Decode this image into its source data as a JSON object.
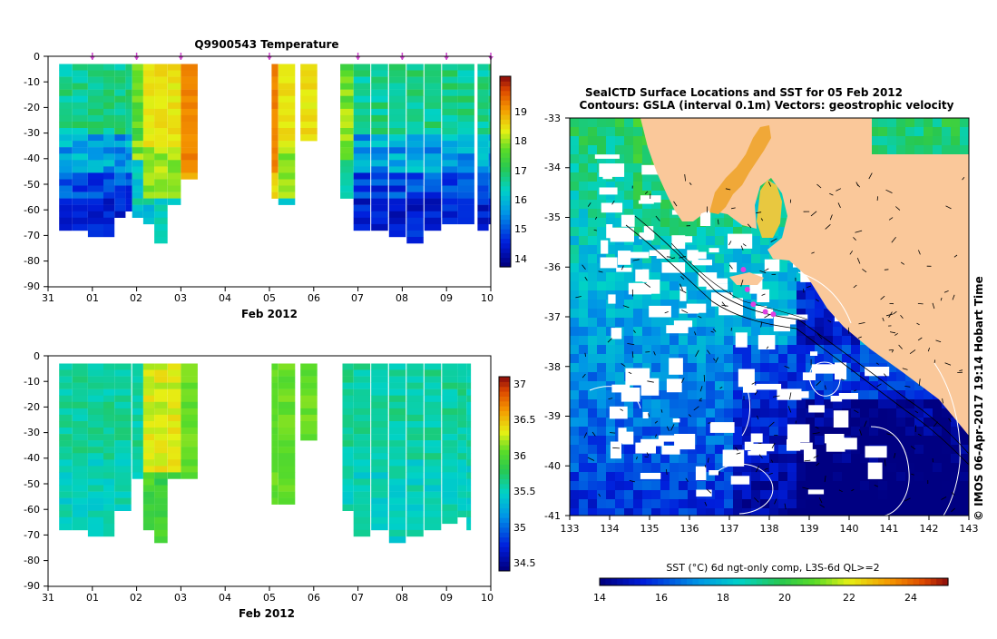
{
  "chart_data": [
    {
      "type": "heatmap",
      "title": "Q9900543  Temperature",
      "xlabel": "Feb 2012",
      "ylabel": "",
      "x_ticks": [
        "31",
        "01",
        "02",
        "03",
        "04",
        "05",
        "06",
        "07",
        "08",
        "09",
        "10"
      ],
      "x_range_days": [
        0,
        10
      ],
      "ylim": [
        -90,
        0
      ],
      "y_ticks": [
        "0",
        "-10",
        "-20",
        "-30",
        "-40",
        "-50",
        "-60",
        "-70",
        "-80",
        "-90"
      ],
      "colorbar": {
        "min": 13.5,
        "max": 20,
        "ticks": [
          "14",
          "15",
          "16",
          "17",
          "18",
          "19"
        ]
      },
      "profile_markers_days": [
        1.0,
        2.0,
        3.0,
        5.0,
        7.0,
        8.0,
        9.0,
        10.0
      ],
      "profiles": [
        {
          "t": 0.25,
          "depth": 67,
          "profile": "cold_mix"
        },
        {
          "t": 0.55,
          "depth": 67,
          "profile": "cold_mix"
        },
        {
          "t": 0.9,
          "depth": 69,
          "profile": "cold_mix"
        },
        {
          "t": 1.25,
          "depth": 69,
          "profile": "cold_mix"
        },
        {
          "t": 1.5,
          "depth": 61,
          "profile": "cold_mix"
        },
        {
          "t": 1.75,
          "depth": 60,
          "profile": "cold_mix"
        },
        {
          "t": 1.9,
          "depth": 63,
          "profile": "warm_mix"
        },
        {
          "t": 2.15,
          "depth": 65,
          "profile": "warm"
        },
        {
          "t": 2.4,
          "depth": 72,
          "profile": "warm"
        },
        {
          "t": 2.7,
          "depth": 58,
          "profile": "warm"
        },
        {
          "t": 3.0,
          "depth": 47,
          "profile": "hot"
        },
        {
          "t": 5.05,
          "depth": 55,
          "profile": "hot"
        },
        {
          "t": 5.2,
          "depth": 57,
          "profile": "warm"
        },
        {
          "t": 5.7,
          "depth": 31,
          "profile": "warm"
        },
        {
          "t": 6.6,
          "depth": 55,
          "profile": "warm_mix"
        },
        {
          "t": 6.9,
          "depth": 68,
          "profile": "cold_mix"
        },
        {
          "t": 7.3,
          "depth": 67,
          "profile": "cold_mix"
        },
        {
          "t": 7.7,
          "depth": 70,
          "profile": "cold_mix"
        },
        {
          "t": 8.1,
          "depth": 71,
          "profile": "cold_mix"
        },
        {
          "t": 8.5,
          "depth": 68,
          "profile": "cold_mix"
        },
        {
          "t": 8.9,
          "depth": 65,
          "profile": "cold_mix"
        },
        {
          "t": 9.25,
          "depth": 64,
          "profile": "cold_mix"
        },
        {
          "t": 9.7,
          "depth": 68,
          "profile": "cold_mix"
        },
        {
          "t": 9.95,
          "depth": 65,
          "profile": "cold_mix"
        }
      ]
    },
    {
      "type": "heatmap",
      "title": "",
      "xlabel": "Feb 2012",
      "ylabel": "",
      "x_ticks": [
        "31",
        "01",
        "02",
        "03",
        "04",
        "05",
        "06",
        "07",
        "08",
        "09",
        "10"
      ],
      "x_range_days": [
        0,
        10
      ],
      "ylim": [
        -90,
        0
      ],
      "y_ticks": [
        "0",
        "-10",
        "-20",
        "-30",
        "-40",
        "-50",
        "-60",
        "-70",
        "-80",
        "-90"
      ],
      "colorbar": {
        "min": 34.3,
        "max": 37.1,
        "ticks": [
          "34.5",
          "35",
          "35.5",
          "36",
          "36.5",
          "37"
        ]
      },
      "profiles": [
        {
          "t": 0.25,
          "depth": 67,
          "profile": "salt_mid"
        },
        {
          "t": 0.55,
          "depth": 66,
          "profile": "salt_mid"
        },
        {
          "t": 0.9,
          "depth": 69,
          "profile": "salt_mid"
        },
        {
          "t": 1.25,
          "depth": 69,
          "profile": "salt_mid"
        },
        {
          "t": 1.5,
          "depth": 60,
          "profile": "salt_mid"
        },
        {
          "t": 1.9,
          "depth": 48,
          "profile": "salt_mid"
        },
        {
          "t": 2.15,
          "depth": 66,
          "profile": "salt_high"
        },
        {
          "t": 2.4,
          "depth": 72,
          "profile": "salt_high"
        },
        {
          "t": 2.7,
          "depth": 47,
          "profile": "salt_high"
        },
        {
          "t": 3.0,
          "depth": 47,
          "profile": "salt_yellow"
        },
        {
          "t": 5.05,
          "depth": 56,
          "profile": "salt_yellow"
        },
        {
          "t": 5.2,
          "depth": 57,
          "profile": "salt_yellow"
        },
        {
          "t": 5.7,
          "depth": 31,
          "profile": "salt_yellow"
        },
        {
          "t": 6.65,
          "depth": 60,
          "profile": "salt_mid"
        },
        {
          "t": 6.9,
          "depth": 69,
          "profile": "salt_mid"
        },
        {
          "t": 7.3,
          "depth": 66,
          "profile": "salt_mid"
        },
        {
          "t": 7.7,
          "depth": 71,
          "profile": "salt_mid"
        },
        {
          "t": 8.1,
          "depth": 69,
          "profile": "salt_mid"
        },
        {
          "t": 8.5,
          "depth": 66,
          "profile": "salt_mid"
        },
        {
          "t": 8.9,
          "depth": 64,
          "profile": "salt_mid"
        },
        {
          "t": 9.25,
          "depth": 63,
          "profile": "salt_mid"
        },
        {
          "t": 9.45,
          "depth": 66,
          "profile": "salt_mid"
        }
      ]
    },
    {
      "type": "heatmap",
      "title": "SealCTD Surface Locations and SST for 05 Feb 2012",
      "subtitle": "Contours: GSLA (interval 0.1m) Vectors: geostrophic velocity",
      "xlabel": "",
      "ylabel": "",
      "xlim": [
        133,
        143
      ],
      "ylim": [
        -41,
        -33
      ],
      "x_ticks": [
        "133",
        "134",
        "135",
        "136",
        "137",
        "138",
        "139",
        "140",
        "141",
        "142",
        "143"
      ],
      "y_ticks": [
        "-33",
        "-34",
        "-35",
        "-36",
        "-37",
        "-38",
        "-39",
        "-40",
        "-41"
      ],
      "colorbar": {
        "label": "SST (°C) 6d ngt-only comp, L3S-6d QL>=2",
        "min": 13.5,
        "max": 25,
        "ticks": [
          "14",
          "16",
          "18",
          "20",
          "22",
          "24"
        ]
      },
      "seal_track": [
        [
          137.35,
          -36.05
        ],
        [
          137.45,
          -36.45
        ],
        [
          137.6,
          -36.75
        ],
        [
          137.9,
          -36.9
        ],
        [
          138.1,
          -36.95
        ]
      ],
      "credit": "© IMOS 06-Apr-2017 19:14 Hobart Time"
    }
  ],
  "colors": {
    "land": "#fac89a",
    "seal_track": "#e040e0",
    "marker": "#cc44cc"
  }
}
